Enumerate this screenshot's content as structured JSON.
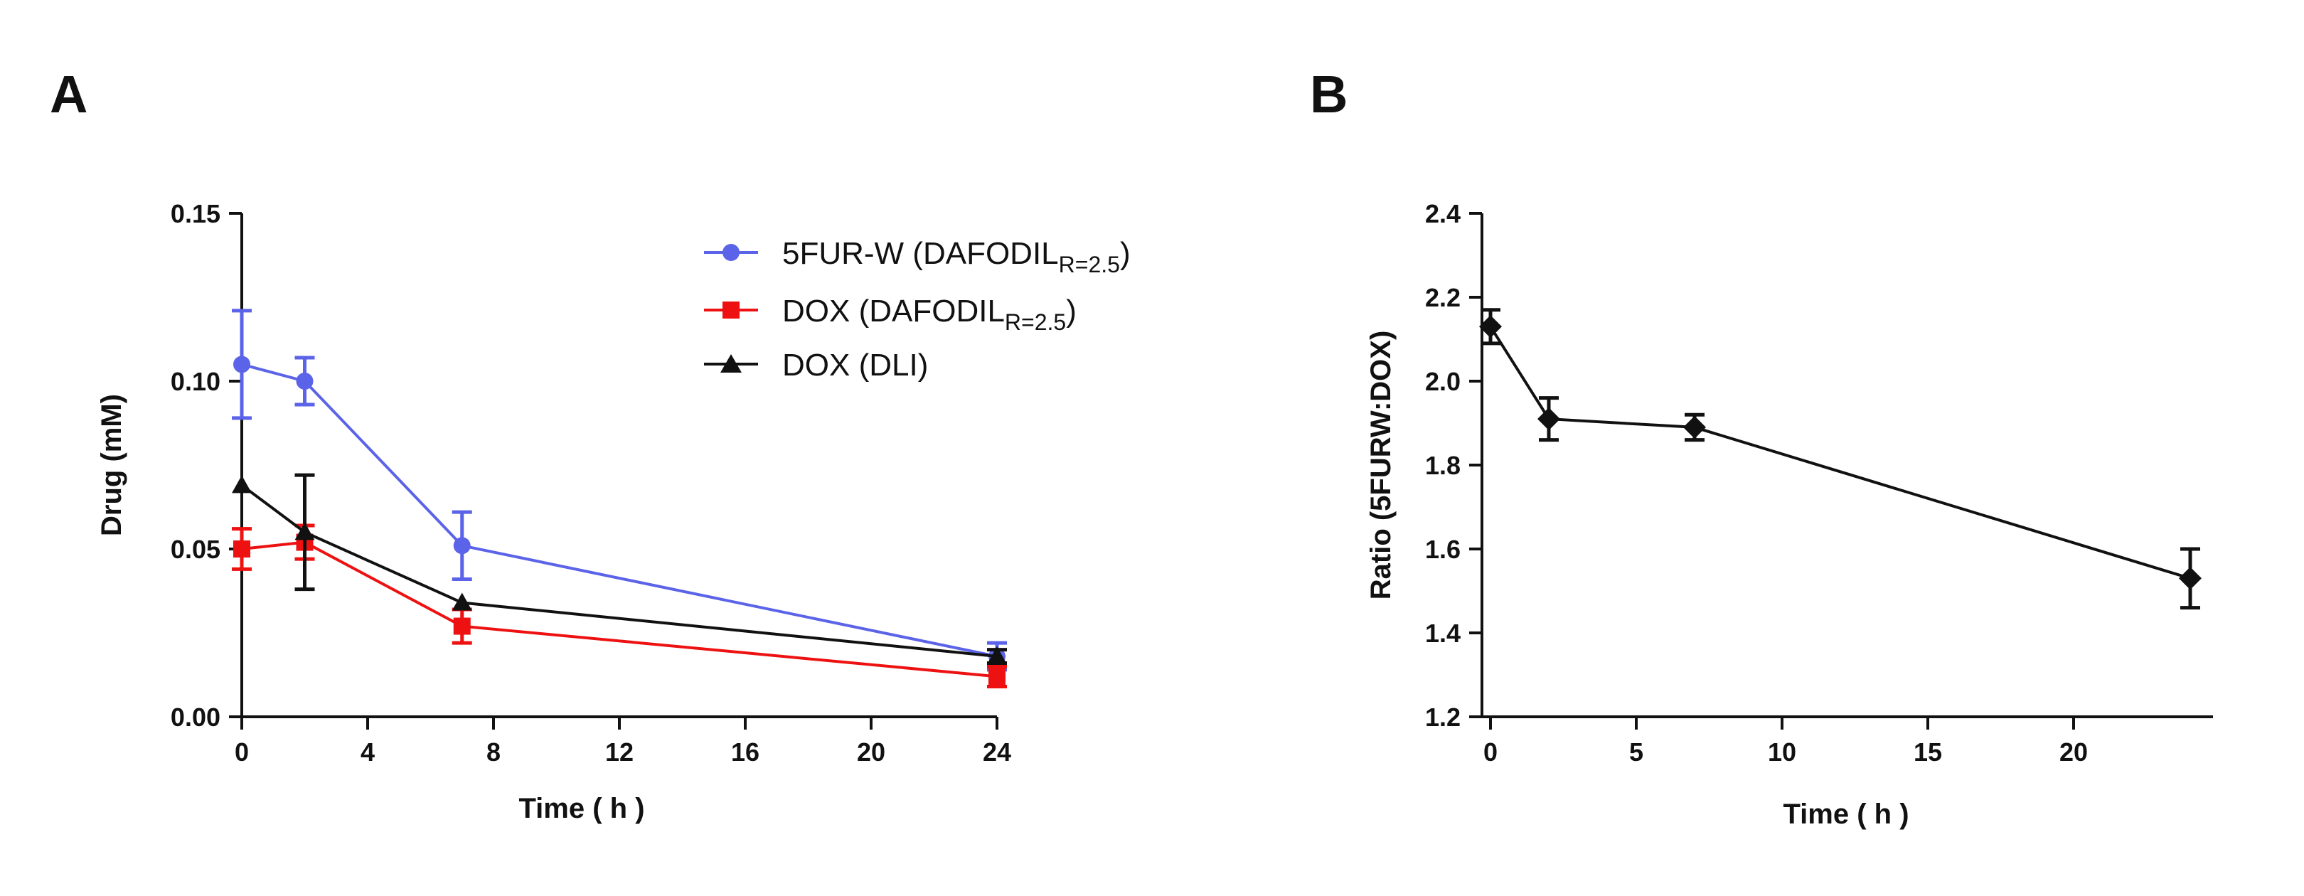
{
  "panels": {
    "a": {
      "letter": "A"
    },
    "b": {
      "letter": "B"
    }
  },
  "chart_data": [
    {
      "type": "line",
      "panel": "A",
      "title": "",
      "xlabel": "Time ( h )",
      "ylabel": "Drug (mM)",
      "xlim": [
        0,
        24
      ],
      "ylim": [
        0,
        0.15
      ],
      "xticks": [
        0,
        4,
        8,
        12,
        16,
        20,
        24
      ],
      "xtick_labels": [
        "0",
        "4",
        "8",
        "12",
        "16",
        "20",
        "24"
      ],
      "yticks": [
        0,
        0.05,
        0.1,
        0.15
      ],
      "ytick_labels": [
        "0.00",
        "0.05",
        "0.10",
        "0.15"
      ],
      "legend_position": "top-right",
      "series": [
        {
          "name": "5FUR-W (DAFODIL",
          "name_sub": "R=2.5",
          "name_suffix": ")",
          "color": "#5b63e8",
          "marker": "circle",
          "x": [
            0,
            2,
            7,
            24
          ],
          "values": [
            0.105,
            0.1,
            0.051,
            0.018
          ],
          "errors": [
            0.016,
            0.007,
            0.01,
            0.004
          ]
        },
        {
          "name": "DOX (DAFODIL",
          "name_sub": "R=2.5",
          "name_suffix": ")",
          "color": "#ee1111",
          "marker": "square",
          "x": [
            0,
            2,
            7,
            24
          ],
          "values": [
            0.05,
            0.052,
            0.027,
            0.012
          ],
          "errors": [
            0.006,
            0.005,
            0.005,
            0.003
          ]
        },
        {
          "name": "DOX (DLI)",
          "name_sub": "",
          "name_suffix": "",
          "color": "#111111",
          "marker": "triangle",
          "x": [
            0,
            2,
            7,
            24
          ],
          "values": [
            0.069,
            0.055,
            0.034,
            0.018
          ],
          "errors": [
            0,
            0.017,
            0,
            0.002
          ]
        }
      ]
    },
    {
      "type": "line",
      "panel": "B",
      "title": "",
      "xlabel": "Time ( h )",
      "ylabel": "Ratio (5FURW:DOX)",
      "xlim": [
        0,
        24
      ],
      "ylim": [
        1.2,
        2.4
      ],
      "xticks": [
        0,
        5,
        10,
        15,
        20
      ],
      "xtick_labels": [
        "0",
        "5",
        "10",
        "15",
        "20"
      ],
      "yticks": [
        1.2,
        1.4,
        1.6,
        1.8,
        2.0,
        2.2,
        2.4
      ],
      "ytick_labels": [
        "1.2",
        "1.4",
        "1.6",
        "1.8",
        "2.0",
        "2.2",
        "2.4"
      ],
      "series": [
        {
          "name": "Ratio",
          "color": "#111111",
          "marker": "diamond",
          "x": [
            0,
            2,
            7,
            24
          ],
          "values": [
            2.13,
            1.91,
            1.89,
            1.53
          ],
          "errors": [
            0.04,
            0.05,
            0.03,
            0.07
          ]
        }
      ]
    }
  ]
}
